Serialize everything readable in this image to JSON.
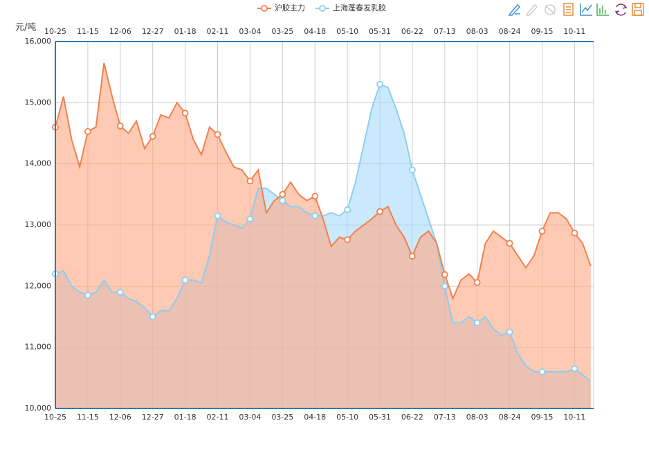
{
  "chart_data": {
    "type": "area",
    "y_axis_label": "元/吨",
    "categories": [
      "10-25",
      null,
      null,
      null,
      "11-15",
      null,
      null,
      null,
      "12-06",
      null,
      null,
      null,
      "12-27",
      null,
      null,
      null,
      "01-18",
      null,
      null,
      null,
      "02-11",
      null,
      null,
      null,
      "03-04",
      null,
      null,
      null,
      "03-25",
      null,
      null,
      null,
      "04-18",
      null,
      null,
      null,
      "05-10",
      null,
      null,
      null,
      "05-31",
      null,
      null,
      null,
      "06-22",
      null,
      null,
      null,
      "07-13",
      null,
      null,
      null,
      "08-03",
      null,
      null,
      null,
      "08-24",
      null,
      null,
      null,
      "09-15",
      null,
      null,
      null,
      "10-11",
      null,
      null
    ],
    "series": [
      {
        "name": "沪胶主力",
        "color": "#f0804e",
        "fill": "#ffa681",
        "values": [
          14600,
          15100,
          14400,
          13950,
          14530,
          14600,
          15650,
          15100,
          14620,
          14500,
          14700,
          14250,
          14450,
          14800,
          14750,
          15000,
          14830,
          14400,
          14150,
          14600,
          14480,
          14200,
          13950,
          13900,
          13720,
          13900,
          13200,
          13400,
          13500,
          13700,
          13500,
          13400,
          13470,
          13100,
          12650,
          12800,
          12760,
          12900,
          13000,
          13100,
          13220,
          13300,
          13000,
          12800,
          12490,
          12800,
          12900,
          12700,
          12190,
          11800,
          12100,
          12200,
          12060,
          12700,
          12900,
          12800,
          12700,
          12500,
          12300,
          12500,
          12900,
          13200,
          13200,
          13100,
          12870,
          12700,
          12330
        ]
      },
      {
        "name": "上海蓬春发乳胶",
        "color": "#8ccdf2",
        "fill": "#a6dbfa",
        "values": [
          12200,
          12250,
          12000,
          11900,
          11850,
          11900,
          12100,
          11900,
          11900,
          11800,
          11750,
          11650,
          11500,
          11600,
          11600,
          11800,
          12100,
          12100,
          12050,
          12500,
          13150,
          13050,
          13000,
          12950,
          13100,
          13600,
          13600,
          13500,
          13400,
          13300,
          13300,
          13200,
          13150,
          13150,
          13200,
          13150,
          13250,
          13700,
          14300,
          14900,
          15300,
          15250,
          14900,
          14500,
          13900,
          13500,
          13100,
          12700,
          12000,
          11400,
          11400,
          11500,
          11400,
          11500,
          11300,
          11200,
          11250,
          10900,
          10700,
          10600,
          10600,
          10600,
          10600,
          10600,
          10650,
          10550,
          10450
        ]
      }
    ],
    "ylim": [
      10000,
      16000
    ],
    "yticks": [
      {
        "value": 10000,
        "label": "10,000"
      },
      {
        "value": 11000,
        "label": "11,000"
      },
      {
        "value": 12000,
        "label": "12,000"
      },
      {
        "value": 13000,
        "label": "13,000"
      },
      {
        "value": 14000,
        "label": "14,000"
      },
      {
        "value": 15000,
        "label": "15,000"
      },
      {
        "value": 16000,
        "label": "16,000"
      }
    ],
    "grid": true,
    "legend": "top"
  }
}
